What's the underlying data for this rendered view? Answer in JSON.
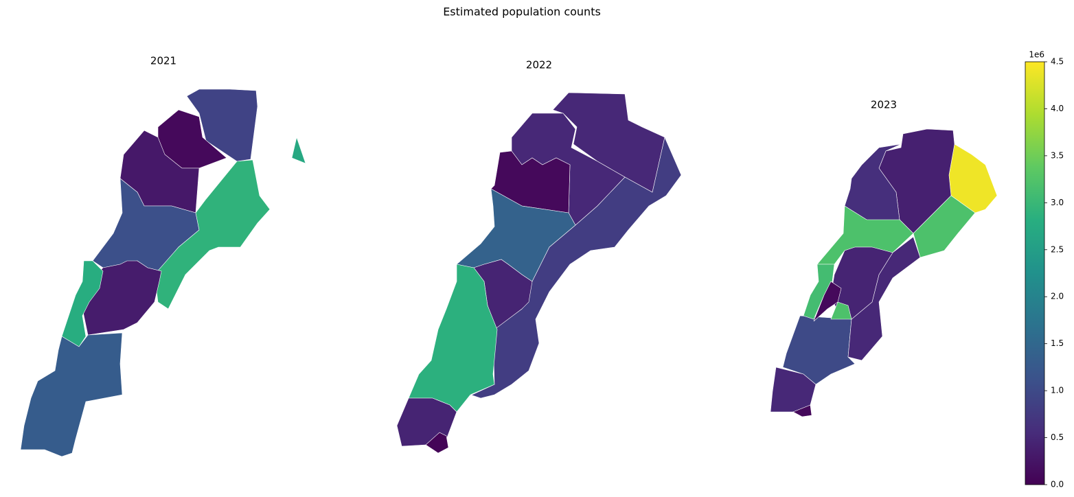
{
  "chart_data": {
    "type": "choropleth",
    "title": "Estimated population counts",
    "panels": [
      {
        "title": "2021",
        "values": [
          900000,
          100000,
          300000,
          1100000,
          2900000,
          350000,
          2800000,
          1300000,
          2700000
        ]
      },
      {
        "title": "2022",
        "values": [
          500000,
          500000,
          100000,
          1400000,
          800000,
          450000,
          2850000,
          450000,
          50000
        ]
      },
      {
        "title": "2023",
        "values": [
          4400000,
          400000,
          600000,
          3200000,
          3200000,
          1000000,
          500000,
          450000,
          3100000,
          100000,
          3200000,
          500000,
          100000
        ]
      }
    ],
    "colormap": "viridis",
    "clim": [
      0,
      4500000
    ],
    "colorbar_offset": "1e6",
    "colorbar_ticks": [
      {
        "value": 0,
        "label": "0.0"
      },
      {
        "value": 500000,
        "label": "0.5"
      },
      {
        "value": 1000000,
        "label": "1.0"
      },
      {
        "value": 1500000,
        "label": "1.5"
      },
      {
        "value": 2000000,
        "label": "2.0"
      },
      {
        "value": 2500000,
        "label": "2.5"
      },
      {
        "value": 3000000,
        "label": "3.0"
      },
      {
        "value": 3500000,
        "label": "3.5"
      },
      {
        "value": 4000000,
        "label": "4.0"
      },
      {
        "value": 4500000,
        "label": "4.5"
      }
    ]
  }
}
